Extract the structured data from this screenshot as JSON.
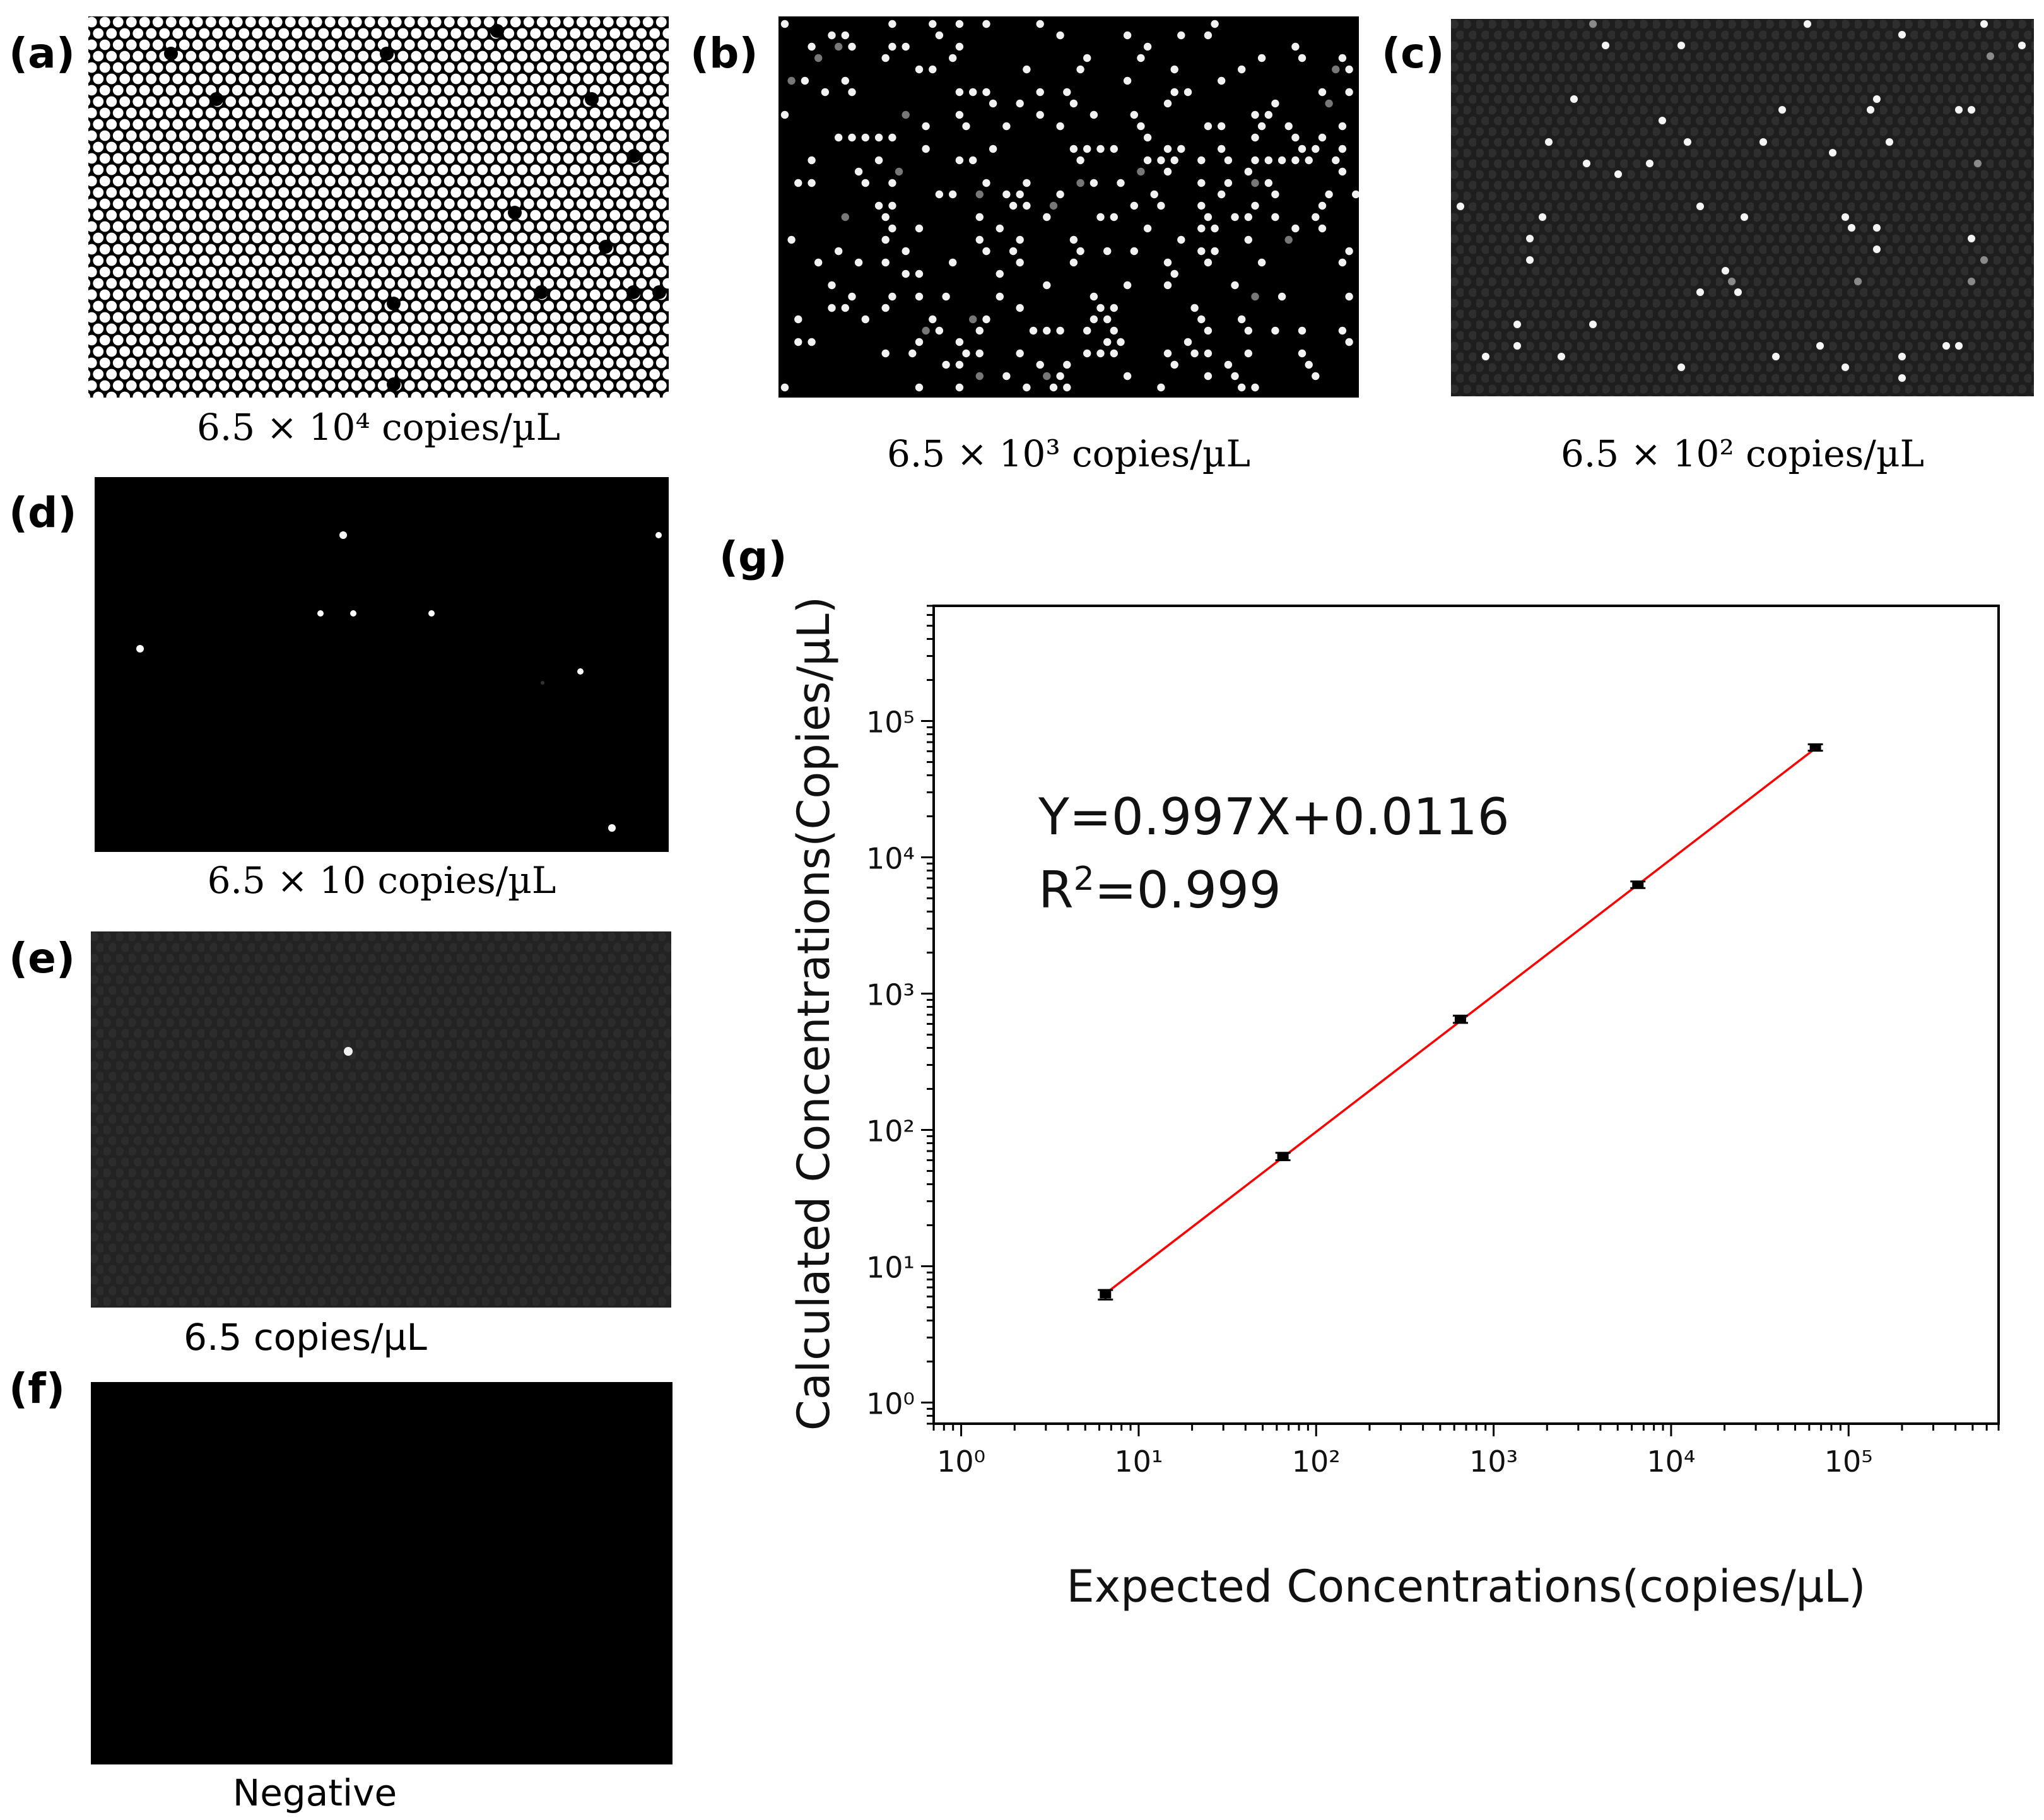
{
  "panels": {
    "a": {
      "letter": "(a)",
      "caption": "6.5 × 10⁴ copies/µL"
    },
    "b": {
      "letter": "(b)",
      "caption": "6.5 × 10³ copies/µL"
    },
    "c": {
      "letter": "(c)",
      "caption": "6.5 × 10² copies/µL"
    },
    "d": {
      "letter": "(d)",
      "caption": "6.5 × 10 copies/µL"
    },
    "e": {
      "letter": "(e)",
      "caption": "6.5 copies/µL"
    },
    "f": {
      "letter": "(f)",
      "caption": "Negative"
    },
    "g": {
      "letter": "(g)"
    }
  },
  "chart_data": {
    "type": "scatter",
    "xlabel": "Expected Concentrations(copies/µL)",
    "ylabel": "Calculated Concentrations(Copies/µL)",
    "x_scale": "log",
    "y_scale": "log",
    "xlim": [
      0.7,
      700000
    ],
    "ylim": [
      0.7,
      700000
    ],
    "x_ticks": [
      "10⁰",
      "10¹",
      "10²",
      "10³",
      "10⁴",
      "10⁵"
    ],
    "y_ticks": [
      "10⁰",
      "10¹",
      "10²",
      "10³",
      "10⁴",
      "10⁵"
    ],
    "grid": false,
    "annotation": {
      "equation": "Y=0.997X+0.0116",
      "r2_prefix": "R",
      "r2_sup": "2",
      "r2_value": "=0.999"
    },
    "points": [
      {
        "x": 6.5,
        "y": 6.2,
        "err": 0.5
      },
      {
        "x": 65,
        "y": 64,
        "err": 4
      },
      {
        "x": 650,
        "y": 650,
        "err": 40
      },
      {
        "x": 6500,
        "y": 6300,
        "err": 350
      },
      {
        "x": 65000,
        "y": 64000,
        "err": 3500
      }
    ],
    "fit_line": {
      "x": [
        6.5,
        65000
      ],
      "y": [
        6.3,
        63000
      ]
    },
    "colors": {
      "fit": "#ff0000",
      "points": "#000000"
    }
  }
}
